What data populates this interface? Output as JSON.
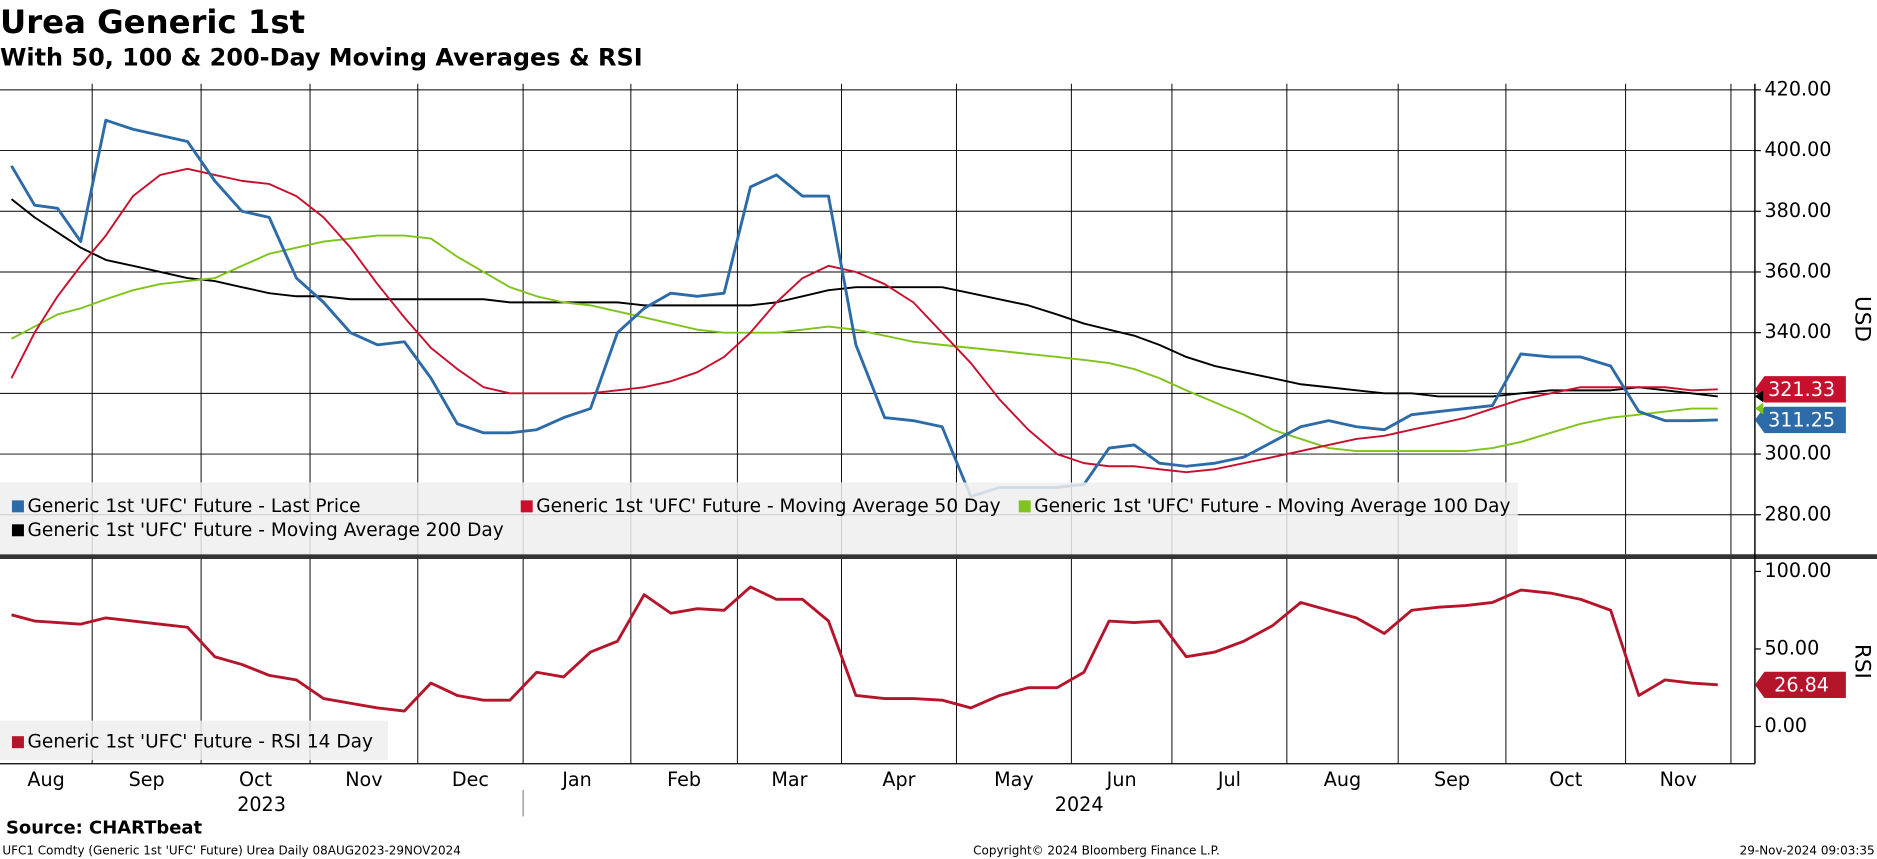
{
  "chart_data": {
    "type": "line",
    "title": "Urea Generic 1st",
    "subtitle": "With 50, 100 & 200-Day Moving Averages & RSI",
    "categories": [
      "Aug",
      "Sep",
      "Oct",
      "Nov",
      "Dec",
      "Jan",
      "Feb",
      "Mar",
      "Apr",
      "May",
      "Jun",
      "Jul",
      "Aug",
      "Sep",
      "Oct",
      "Nov"
    ],
    "year_labels": [
      "2023",
      "2024"
    ],
    "y_label": "USD",
    "ylim": [
      267,
      422
    ],
    "yticks": [
      {
        "value": 280,
        "label": "280.00"
      },
      {
        "value": 300,
        "label": "300.00"
      },
      {
        "value": 320,
        "label": "320.00"
      },
      {
        "value": 340,
        "label": "340.00"
      },
      {
        "value": 360,
        "label": "360.00"
      },
      {
        "value": 380,
        "label": "380.00"
      },
      {
        "value": 400,
        "label": "400.00"
      },
      {
        "value": 420,
        "label": "420.00"
      }
    ],
    "grid": true,
    "series": [
      {
        "name": "Generic 1st 'UFC' Future - Last Price",
        "color": "#2c6aa8",
        "values": [
          [
            395,
            382,
            381,
            370
          ],
          [
            410,
            407,
            405,
            403
          ],
          [
            390,
            380,
            378,
            358
          ],
          [
            350,
            340,
            336,
            337
          ],
          [
            325,
            310,
            307,
            307
          ],
          [
            308,
            312,
            315,
            340
          ],
          [
            348,
            353,
            352,
            353
          ],
          [
            388,
            392,
            385,
            385
          ],
          [
            336,
            312,
            311,
            309
          ],
          [
            286,
            289,
            289,
            289
          ],
          [
            290,
            302,
            303,
            297
          ],
          [
            296,
            297,
            299,
            304
          ],
          [
            309,
            311,
            309,
            308
          ],
          [
            313,
            314,
            315,
            316
          ],
          [
            333,
            332,
            332,
            329
          ],
          [
            314,
            311,
            311,
            311.25
          ]
        ]
      },
      {
        "name": "Generic 1st 'UFC' Future - Moving Average 50 Day",
        "color": "#c8102e",
        "values": [
          [
            325,
            340,
            352,
            362
          ],
          [
            372,
            385,
            392,
            394
          ],
          [
            392,
            390,
            389,
            385
          ],
          [
            378,
            368,
            356,
            345
          ],
          [
            335,
            328,
            322,
            320
          ],
          [
            320,
            320,
            320,
            321
          ],
          [
            322,
            324,
            327,
            332
          ],
          [
            340,
            350,
            358,
            362
          ],
          [
            360,
            356,
            350,
            340
          ],
          [
            330,
            318,
            308,
            300
          ],
          [
            297,
            296,
            296,
            295
          ],
          [
            294,
            295,
            297,
            299
          ],
          [
            301,
            303,
            305,
            306
          ],
          [
            308,
            310,
            312,
            315
          ],
          [
            318,
            320,
            322,
            322
          ],
          [
            322,
            322,
            321,
            321.33
          ]
        ]
      },
      {
        "name": "Generic 1st 'UFC' Future - Moving Average 100 Day",
        "color": "#7fc31c",
        "values": [
          [
            338,
            342,
            346,
            348
          ],
          [
            351,
            354,
            356,
            357
          ],
          [
            358,
            362,
            366,
            368
          ],
          [
            370,
            371,
            372,
            372
          ],
          [
            371,
            365,
            360,
            355
          ],
          [
            352,
            350,
            349,
            347
          ],
          [
            345,
            343,
            341,
            340
          ],
          [
            340,
            340,
            341,
            342
          ],
          [
            341,
            339,
            337,
            336
          ],
          [
            335,
            334,
            333,
            332
          ],
          [
            331,
            330,
            328,
            325
          ],
          [
            321,
            317,
            313,
            308
          ],
          [
            305,
            302,
            301,
            301
          ],
          [
            301,
            301,
            301,
            302
          ],
          [
            304,
            307,
            310,
            312
          ],
          [
            313,
            314,
            315,
            315
          ]
        ]
      },
      {
        "name": "Generic 1st 'UFC' Future - Moving Average 200 Day",
        "color": "#000000",
        "values": [
          [
            384,
            378,
            373,
            368
          ],
          [
            364,
            362,
            360,
            358
          ],
          [
            357,
            355,
            353,
            352
          ],
          [
            352,
            351,
            351,
            351
          ],
          [
            351,
            351,
            351,
            350
          ],
          [
            350,
            350,
            350,
            350
          ],
          [
            349,
            349,
            349,
            349
          ],
          [
            349,
            350,
            352,
            354
          ],
          [
            355,
            355,
            355,
            355
          ],
          [
            353,
            351,
            349,
            346
          ],
          [
            343,
            341,
            339,
            336
          ],
          [
            332,
            329,
            327,
            325
          ],
          [
            323,
            322,
            321,
            320
          ],
          [
            320,
            319,
            319,
            319
          ],
          [
            320,
            321,
            321,
            321
          ],
          [
            322,
            321,
            320,
            319
          ]
        ]
      }
    ],
    "lower_panel": {
      "y_label": "RSI",
      "ylim": [
        -24,
        108
      ],
      "yticks": [
        {
          "value": 0,
          "label": "0.00"
        },
        {
          "value": 50,
          "label": "50.00"
        },
        {
          "value": 100,
          "label": "100.00"
        }
      ],
      "series": [
        {
          "name": "Generic 1st 'UFC' Future - RSI 14 Day",
          "color": "#b5152b",
          "values": [
            [
              72,
              68,
              67,
              66
            ],
            [
              70,
              68,
              66,
              64
            ],
            [
              45,
              40,
              33,
              30
            ],
            [
              18,
              15,
              12,
              10
            ],
            [
              28,
              20,
              17,
              17
            ],
            [
              35,
              32,
              48,
              55
            ],
            [
              85,
              73,
              76,
              75
            ],
            [
              90,
              82,
              82,
              68
            ],
            [
              20,
              18,
              18,
              17
            ],
            [
              12,
              20,
              25,
              25
            ],
            [
              35,
              68,
              67,
              68
            ],
            [
              45,
              48,
              55,
              65
            ],
            [
              80,
              75,
              70,
              60
            ],
            [
              75,
              77,
              78,
              80
            ],
            [
              88,
              86,
              82,
              75
            ],
            [
              20,
              30,
              28,
              26.84
            ]
          ]
        }
      ]
    },
    "source": "Source: CHARTbeat",
    "footer_left": "UFC1 Comdty (Generic 1st 'UFC' Future) Urea  Daily 08AUG2023-29NOV2024",
    "footer_center": "Copyright© 2024 Bloomberg Finance L.P.",
    "footer_right": "29-Nov-2024 09:03:35"
  }
}
